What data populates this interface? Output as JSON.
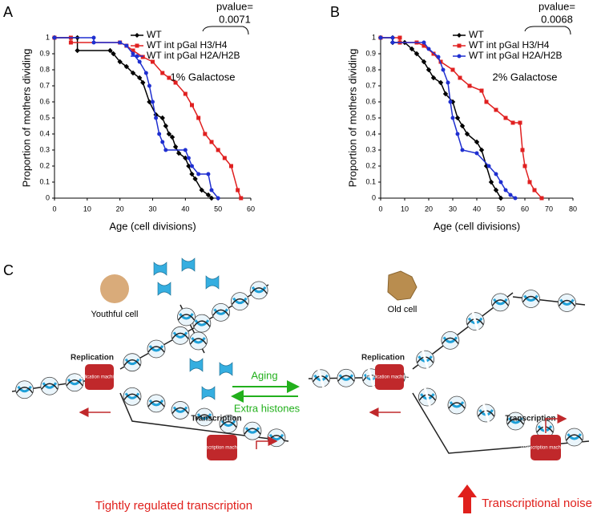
{
  "chart_data": [
    {
      "type": "line",
      "panel_label": "A",
      "x_label": "Age (cell divisions)",
      "y_label": "Proportion of mothers dividing",
      "annotation": "1% Galactose",
      "pvalue_label": "pvalue=",
      "pvalue": "0.0071",
      "legend": "upper right",
      "xlim": [
        0,
        60
      ],
      "xticks": [
        0,
        10,
        20,
        30,
        40,
        50,
        60
      ],
      "ylim": [
        0,
        1
      ],
      "yticks": [
        0,
        0.1,
        0.2,
        0.3,
        0.4,
        0.5,
        0.6,
        0.7,
        0.8,
        0.9,
        1
      ],
      "series": [
        {
          "name": "WT",
          "color": "#000000",
          "marker": "diamond",
          "x": [
            0,
            7,
            7,
            17,
            18,
            20,
            22,
            24,
            26,
            27,
            29,
            31,
            33,
            34,
            35,
            36,
            37,
            38,
            40,
            41,
            42,
            43,
            45,
            47,
            48
          ],
          "values": [
            1,
            1,
            0.92,
            0.92,
            0.9,
            0.85,
            0.82,
            0.78,
            0.75,
            0.72,
            0.6,
            0.52,
            0.5,
            0.45,
            0.4,
            0.38,
            0.32,
            0.28,
            0.25,
            0.2,
            0.15,
            0.12,
            0.05,
            0.02,
            0
          ]
        },
        {
          "name": "WT int pGal H3/H4",
          "color": "#e02020",
          "marker": "square",
          "x": [
            0,
            5,
            5,
            20,
            22,
            24,
            27,
            30,
            33,
            35,
            37,
            40,
            42,
            44,
            46,
            48,
            50,
            52,
            54,
            56,
            57
          ],
          "values": [
            1,
            1,
            0.97,
            0.97,
            0.95,
            0.92,
            0.88,
            0.85,
            0.78,
            0.75,
            0.72,
            0.65,
            0.58,
            0.5,
            0.4,
            0.35,
            0.3,
            0.25,
            0.2,
            0.05,
            0
          ]
        },
        {
          "name": "WT int pGal H2A/H2B",
          "color": "#1f2fd0",
          "marker": "circle",
          "x": [
            0,
            12,
            12,
            20,
            22,
            24,
            26,
            28,
            29,
            30,
            31,
            32,
            33,
            34,
            40,
            41,
            42,
            44,
            47,
            48,
            50
          ],
          "values": [
            1,
            1,
            0.97,
            0.97,
            0.95,
            0.9,
            0.85,
            0.78,
            0.7,
            0.6,
            0.5,
            0.4,
            0.35,
            0.3,
            0.3,
            0.25,
            0.2,
            0.15,
            0.15,
            0.05,
            0
          ]
        }
      ]
    },
    {
      "type": "line",
      "panel_label": "B",
      "x_label": "Age (cell divisions)",
      "y_label": "Proportion of mothers dividing",
      "annotation": "2% Galactose",
      "pvalue_label": "pvalue=",
      "pvalue": "0.0068",
      "legend": "upper right",
      "xlim": [
        0,
        80
      ],
      "xticks": [
        0,
        10,
        20,
        30,
        40,
        50,
        60,
        70,
        80
      ],
      "ylim": [
        0,
        1
      ],
      "yticks": [
        0,
        0.1,
        0.2,
        0.3,
        0.4,
        0.5,
        0.6,
        0.7,
        0.8,
        0.9,
        1
      ],
      "series": [
        {
          "name": "WT",
          "color": "#000000",
          "marker": "diamond",
          "x": [
            0,
            5,
            5,
            10,
            13,
            15,
            18,
            20,
            22,
            25,
            27,
            30,
            32,
            34,
            36,
            40,
            42,
            44,
            46,
            48,
            50
          ],
          "values": [
            1,
            1,
            0.97,
            0.97,
            0.93,
            0.9,
            0.85,
            0.8,
            0.75,
            0.72,
            0.65,
            0.6,
            0.5,
            0.45,
            0.4,
            0.35,
            0.3,
            0.2,
            0.1,
            0.05,
            0
          ]
        },
        {
          "name": "WT int pGal H3/H4",
          "color": "#e02020",
          "marker": "square",
          "x": [
            0,
            8,
            8,
            15,
            18,
            22,
            25,
            30,
            33,
            37,
            42,
            44,
            48,
            52,
            55,
            58,
            59,
            60,
            62,
            64,
            67
          ],
          "values": [
            1,
            1,
            0.97,
            0.97,
            0.95,
            0.9,
            0.85,
            0.8,
            0.75,
            0.7,
            0.67,
            0.6,
            0.55,
            0.5,
            0.47,
            0.47,
            0.3,
            0.2,
            0.1,
            0.05,
            0
          ]
        },
        {
          "name": "WT int pGal H2A/H2B",
          "color": "#1f2fd0",
          "marker": "circle",
          "x": [
            0,
            5,
            5,
            18,
            20,
            24,
            26,
            28,
            29,
            30,
            32,
            34,
            40,
            45,
            48,
            50,
            52,
            54,
            56
          ],
          "values": [
            1,
            1,
            0.97,
            0.97,
            0.93,
            0.88,
            0.8,
            0.72,
            0.6,
            0.5,
            0.4,
            0.3,
            0.28,
            0.2,
            0.15,
            0.1,
            0.05,
            0.02,
            0
          ]
        }
      ]
    }
  ],
  "diagram": {
    "panel_label": "C",
    "youthful_cell": "Youthful cell",
    "old_cell": "Old cell",
    "replication_left": "Replication",
    "replication_right": "Replication",
    "replication_machinery_left": "Replication machinery",
    "replication_machinery_right": "Replication machinery",
    "transcription_left": "Transcription",
    "transcription_right": "Transcription",
    "transcription_machinery_left": "Transcription machinery",
    "transcription_machinery_right": "Transcription machinery",
    "aging": "Aging",
    "extra_histones": "Extra histones",
    "tight_regulation": "Tightly regulated transcription",
    "noise": "Transcriptional noise"
  }
}
